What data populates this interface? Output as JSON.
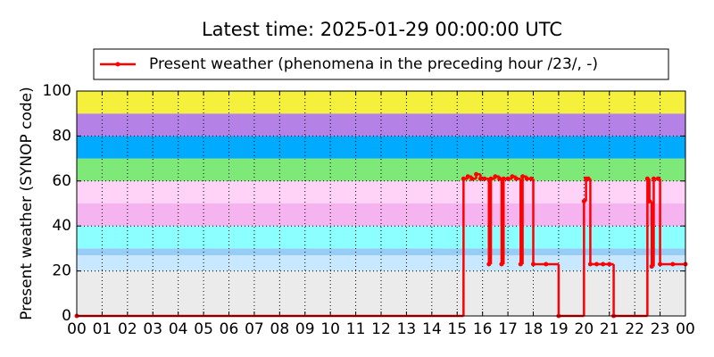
{
  "chart_data": {
    "type": "line",
    "title": "Latest time: 2025-01-29 00:00:00 UTC",
    "y_label": "Present weather (SYNOP code)",
    "xlim": [
      0,
      24
    ],
    "ylim": [
      0,
      100
    ],
    "yticks": [
      0,
      20,
      40,
      60,
      80,
      100
    ],
    "xticks": [
      {
        "value": 0,
        "label": "00"
      },
      {
        "value": 1,
        "label": "01"
      },
      {
        "value": 2,
        "label": "02"
      },
      {
        "value": 3,
        "label": "03"
      },
      {
        "value": 4,
        "label": "04"
      },
      {
        "value": 5,
        "label": "05"
      },
      {
        "value": 6,
        "label": "06"
      },
      {
        "value": 7,
        "label": "07"
      },
      {
        "value": 8,
        "label": "08"
      },
      {
        "value": 9,
        "label": "09"
      },
      {
        "value": 10,
        "label": "10"
      },
      {
        "value": 11,
        "label": "11"
      },
      {
        "value": 12,
        "label": "12"
      },
      {
        "value": 13,
        "label": "13"
      },
      {
        "value": 14,
        "label": "14"
      },
      {
        "value": 15,
        "label": "15"
      },
      {
        "value": 16,
        "label": "16"
      },
      {
        "value": 17,
        "label": "17"
      },
      {
        "value": 18,
        "label": "18"
      },
      {
        "value": 19,
        "label": "19"
      },
      {
        "value": 20,
        "label": "20"
      },
      {
        "value": 21,
        "label": "21"
      },
      {
        "value": 22,
        "label": "22"
      },
      {
        "value": 23,
        "label": "23"
      },
      {
        "value": 24,
        "label": "00"
      }
    ],
    "grid": true,
    "bands": [
      {
        "from": 0,
        "to": 20,
        "color": "#ebebeb"
      },
      {
        "from": 20,
        "to": 27,
        "color": "#c8e8ff"
      },
      {
        "from": 27,
        "to": 30,
        "color": "#96ccf5"
      },
      {
        "from": 30,
        "to": 40,
        "color": "#8cffff"
      },
      {
        "from": 40,
        "to": 50,
        "color": "#f5b4f0"
      },
      {
        "from": 50,
        "to": 60,
        "color": "#ffd2f8"
      },
      {
        "from": 60,
        "to": 70,
        "color": "#7ee878"
      },
      {
        "from": 70,
        "to": 80,
        "color": "#00aaff"
      },
      {
        "from": 80,
        "to": 90,
        "color": "#b482e6"
      },
      {
        "from": 90,
        "to": 100,
        "color": "#f5f03c"
      }
    ],
    "series": [
      {
        "name": "Present weather (phenomena in the preceding hour /23/, -)",
        "color": "#ff0000",
        "x": [
          0,
          15.25,
          15.42,
          15.58,
          15.75,
          15.92,
          16.08,
          16.25,
          16.33,
          16.5,
          16.67,
          16.75,
          16.83,
          17.0,
          17.17,
          17.33,
          17.5,
          17.58,
          17.75,
          17.92,
          18.0,
          18.5,
          19.0,
          20.0,
          20.08,
          20.17,
          20.25,
          20.5,
          20.75,
          21.0,
          21.17,
          22.5,
          22.58,
          22.67,
          22.75,
          22.92,
          23.0,
          23.5,
          24.0
        ],
        "values": [
          0,
          61,
          62,
          61,
          63,
          61,
          61,
          23,
          61,
          62,
          61,
          23,
          61,
          61,
          62,
          61,
          23,
          62,
          61,
          61,
          23,
          23,
          0,
          51,
          61,
          61,
          23,
          23,
          23,
          23,
          0,
          61,
          51,
          22,
          61,
          61,
          23,
          23,
          23
        ]
      }
    ]
  }
}
